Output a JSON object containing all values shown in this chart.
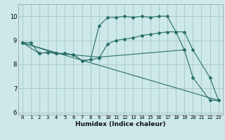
{
  "bg_color": "#cce8e8",
  "grid_color": "#aacccc",
  "line_color": "#2a6e68",
  "xlabel": "Humidex (Indice chaleur)",
  "xlim": [
    -0.5,
    23.5
  ],
  "ylim": [
    5.9,
    10.5
  ],
  "yticks": [
    6,
    7,
    8,
    9,
    10
  ],
  "xticks": [
    0,
    1,
    2,
    3,
    4,
    5,
    6,
    7,
    8,
    9,
    10,
    11,
    12,
    13,
    14,
    15,
    16,
    17,
    18,
    19,
    20,
    21,
    22,
    23
  ],
  "line_peak": {
    "x": [
      0,
      1,
      2,
      3,
      4,
      5,
      6,
      7,
      8,
      9,
      10,
      11,
      12,
      13,
      14,
      15,
      16,
      17,
      18,
      19,
      20,
      22,
      23
    ],
    "y": [
      8.9,
      8.9,
      8.45,
      8.5,
      8.45,
      8.45,
      8.4,
      8.15,
      8.2,
      9.6,
      9.95,
      9.95,
      10.0,
      9.95,
      10.0,
      9.95,
      10.0,
      10.0,
      9.35,
      8.6,
      7.45,
      6.5,
      6.5
    ]
  },
  "line_medium": {
    "x": [
      0,
      2,
      3,
      4,
      5,
      6,
      7,
      8,
      9,
      10,
      11,
      12,
      13,
      14,
      15,
      16,
      17,
      18,
      19,
      20,
      22,
      23
    ],
    "y": [
      8.9,
      8.45,
      8.5,
      8.45,
      8.45,
      8.4,
      8.15,
      8.2,
      8.25,
      8.85,
      9.0,
      9.05,
      9.1,
      9.2,
      9.25,
      9.3,
      9.35,
      9.35,
      9.35,
      8.6,
      7.45,
      6.5
    ]
  },
  "line_diagonal": {
    "x": [
      0,
      23
    ],
    "y": [
      8.9,
      6.5
    ]
  },
  "line_flat": {
    "x": [
      0,
      4,
      9,
      19
    ],
    "y": [
      8.9,
      8.45,
      8.3,
      8.6
    ]
  }
}
